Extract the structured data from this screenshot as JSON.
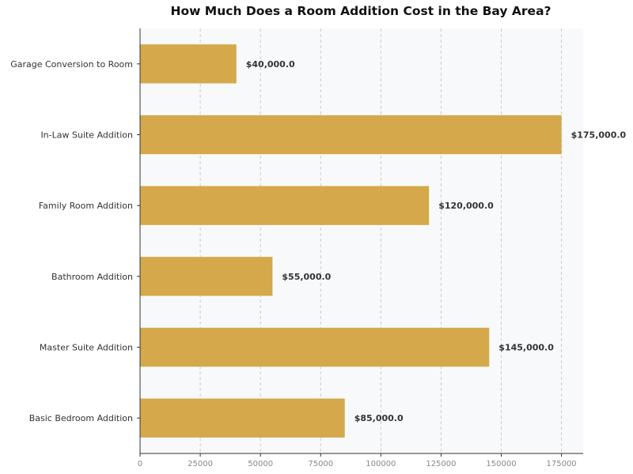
{
  "chart_data": {
    "type": "bar",
    "orientation": "horizontal",
    "title": "How Much Does a Room Addition Cost in the Bay Area?",
    "xlabel": "",
    "ylabel": "",
    "categories": [
      "Garage Conversion to Room",
      "In-Law Suite Addition",
      "Family Room Addition",
      "Bathroom Addition",
      "Master Suite Addition",
      "Basic Bedroom Addition"
    ],
    "values": [
      40000,
      175000,
      120000,
      55000,
      145000,
      85000
    ],
    "value_labels": [
      "$40,000.0",
      "$175,000.0",
      "$120,000.0",
      "$55,000.0",
      "$145,000.0",
      "$85,000.0"
    ],
    "x_ticks": [
      0,
      25000,
      50000,
      75000,
      100000,
      125000,
      150000,
      175000
    ],
    "x_tick_labels": [
      "0",
      "25000",
      "50000",
      "75000",
      "100000",
      "125000",
      "150000",
      "175000"
    ],
    "xlim": [
      0,
      184000
    ],
    "grid": "vertical dashed",
    "bar_color": "#D4A84B",
    "plot_background": "#F8F9FA"
  }
}
